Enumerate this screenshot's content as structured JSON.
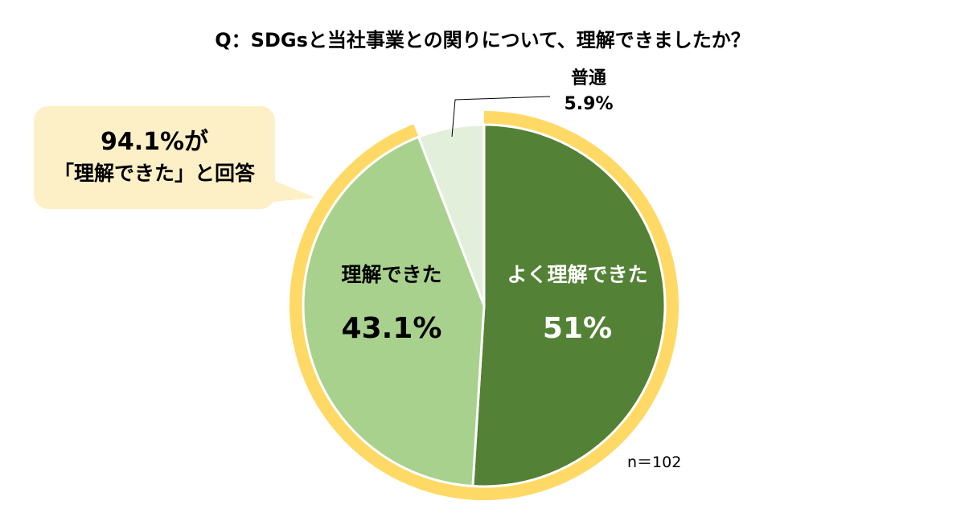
{
  "title": "Q：SDGsと当社事業との関りについて、理解できましたか？",
  "callout": {
    "line1": "94.1%が",
    "line2": "「理解できた」と回答"
  },
  "sample_size": "n＝102",
  "colors": {
    "ring": "#ffd966",
    "callout_bg": "#fdf0c7",
    "very_well": "#538135",
    "understood": "#a9d18e",
    "neutral": "#e2efda"
  },
  "chart_data": {
    "type": "pie",
    "title": "Q：SDGsと当社事業との関りについて、理解できましたか？",
    "slices": [
      {
        "label": "よく理解できた",
        "value": 51,
        "display": "51%",
        "color": "#538135",
        "text_color": "#ffffff"
      },
      {
        "label": "理解できた",
        "value": 43.1,
        "display": "43.1%",
        "color": "#a9d18e",
        "text_color": "#000000"
      },
      {
        "label": "普通",
        "value": 5.9,
        "display": "5.9%",
        "color": "#e2efda",
        "text_color": "#000000"
      }
    ],
    "highlight_ring": {
      "covers": [
        "よく理解できた",
        "理解できた"
      ],
      "total": "94.1%"
    }
  }
}
